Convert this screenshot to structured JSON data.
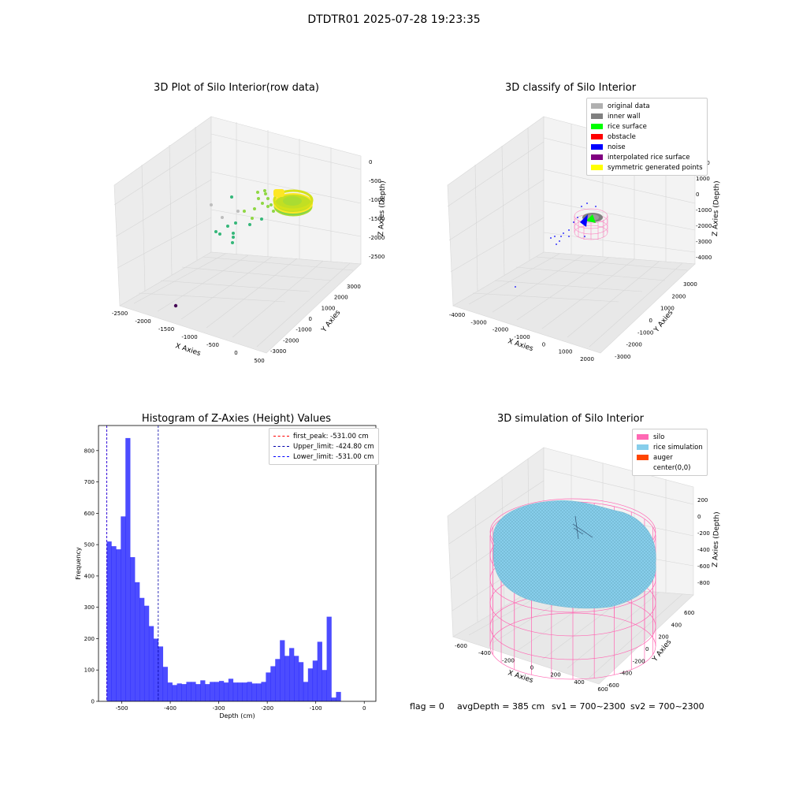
{
  "suptitle": "DTDTR01 2025-07-28 19:23:35",
  "footer": {
    "flag": "flag = 0",
    "avg": "avgDepth = 385 cm",
    "sv1": "sv1 = 700~2300",
    "sv2": "sv2 = 700~2300"
  },
  "chart_data": [
    {
      "type": "scatter",
      "title": "3D Plot of Silo Interior(row data)",
      "xlabel": "X Axies",
      "ylabel": "Y Axies",
      "zlabel": "Z Axies (Depth)",
      "x_ticks": [
        "-2500",
        "-2000",
        "-1500",
        "-1000",
        "-500",
        "0",
        "500"
      ],
      "y_ticks": [
        "-3000",
        "-2000",
        "-1000",
        "0",
        "1000",
        "2000",
        "3000"
      ],
      "z_ticks": [
        "0",
        "-500",
        "-1000",
        "-1500",
        "-2000",
        "-2500"
      ],
      "colors": {
        "yellow": "#fde725",
        "green": "#8fd744",
        "teal": "#35b779",
        "gray": "#bdbdbd",
        "purple": "#440154"
      }
    },
    {
      "type": "scatter",
      "title": "3D classify of Silo Interior",
      "xlabel": "X Axies",
      "ylabel": "Y Axies",
      "zlabel": "Z Axies (Depth)",
      "x_ticks": [
        "-4000",
        "-3000",
        "-2000",
        "-1000",
        "0",
        "1000",
        "2000"
      ],
      "y_ticks": [
        "-3000",
        "-2000",
        "-1000",
        "0",
        "1000",
        "2000",
        "3000"
      ],
      "z_ticks": [
        "2000",
        "1000",
        "0",
        "-1000",
        "-2000",
        "-3000",
        "-4000"
      ],
      "legend": [
        {
          "label": "original data",
          "color": "#b0b0b0"
        },
        {
          "label": "inner wall",
          "color": "#808080"
        },
        {
          "label": "rice surface",
          "color": "#00ff00"
        },
        {
          "label": "obstacle",
          "color": "#ff0000"
        },
        {
          "label": "noise",
          "color": "#0000ff"
        },
        {
          "label": "interpolated rice surface",
          "color": "#800080"
        },
        {
          "label": "symmetric generated points",
          "color": "#ffff00"
        }
      ]
    },
    {
      "type": "bar",
      "title": "Histogram of Z-Axies (Height) Values",
      "xlabel": "Depth (cm)",
      "ylabel": "Frequency",
      "xlim": [
        -548,
        24
      ],
      "ylim": [
        0,
        880
      ],
      "x_ticks": [
        -500,
        -400,
        -300,
        -200,
        -100,
        0
      ],
      "y_ticks": [
        0,
        100,
        200,
        300,
        400,
        500,
        600,
        700,
        800
      ],
      "bar_color": "#0000ff",
      "bin_start": -531,
      "bin_width": 9.65,
      "values": [
        510,
        495,
        485,
        590,
        840,
        460,
        380,
        330,
        305,
        240,
        200,
        175,
        110,
        60,
        52,
        57,
        55,
        62,
        62,
        55,
        67,
        55,
        62,
        62,
        65,
        60,
        72,
        60,
        60,
        60,
        62,
        57,
        57,
        62,
        92,
        112,
        135,
        195,
        145,
        170,
        145,
        125,
        62,
        105,
        130,
        190,
        100,
        270,
        12,
        30
      ],
      "vlines": [
        {
          "label": "first_peak: -531.00 cm",
          "x": -531.0,
          "color": "#ff0000"
        },
        {
          "label": "Upper_limit: -424.80 cm",
          "x": -424.8,
          "color": "#0000aa"
        },
        {
          "label": "Lower_limit: -531.00 cm",
          "x": -531.0,
          "color": "#0000ff"
        }
      ]
    },
    {
      "type": "area",
      "title": "3D simulation of Silo Interior",
      "xlabel": "X Axies",
      "ylabel": "Y Axies",
      "zlabel": "Z Axies (Depth)",
      "x_ticks": [
        "-600",
        "-400",
        "-200",
        "0",
        "200",
        "400",
        "600"
      ],
      "y_ticks": [
        "-600",
        "-400",
        "-200",
        "0",
        "200",
        "400",
        "600"
      ],
      "z_ticks": [
        "200",
        "0",
        "-200",
        "-400",
        "-600",
        "-800"
      ],
      "legend": [
        {
          "label": "silo",
          "color": "#ff69b4"
        },
        {
          "label": "rice simulation",
          "color": "#87ceeb"
        },
        {
          "label": "auger",
          "color": "#ff4500"
        },
        {
          "label": "center(0,0)",
          "color": ""
        }
      ]
    }
  ]
}
